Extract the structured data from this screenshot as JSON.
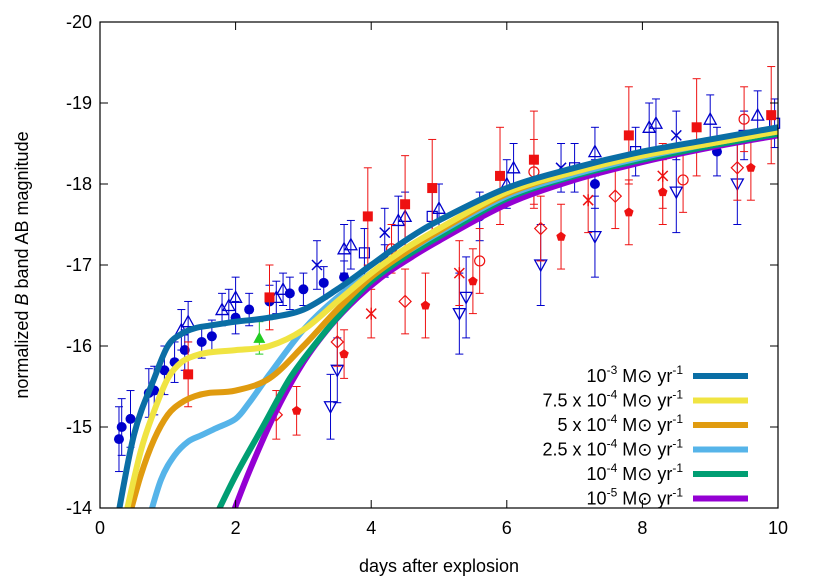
{
  "chart_data": {
    "type": "line",
    "xlabel": "days after explosion",
    "ylabel_parts": [
      "normalized ",
      "B",
      " band AB magnitude"
    ],
    "xlim": [
      0,
      10
    ],
    "ylim": [
      -14,
      -20
    ],
    "y_inverted": true,
    "x_ticks": [
      0,
      2,
      4,
      6,
      8,
      10
    ],
    "x_tick_labels": [
      "0",
      "2",
      "4",
      "6",
      "8",
      "10"
    ],
    "y_ticks": [
      -14,
      -15,
      -16,
      -17,
      -18,
      -19,
      -20
    ],
    "y_tick_labels": [
      "-14",
      "-15",
      "-16",
      "-17",
      "-18",
      "-19",
      "-20"
    ],
    "legend_position": "bottom-right",
    "series": [
      {
        "name": "10-3 M⊙ yr-1",
        "label_parts": [
          "10",
          "-3",
          " M⊙ yr",
          "-1"
        ],
        "color": "#0a6ea5",
        "width": 6,
        "x": [
          0.2,
          0.5,
          0.8,
          1.0,
          1.2,
          1.4,
          1.6,
          2.0,
          2.5,
          3.0,
          3.5,
          4.0,
          4.5,
          5.0,
          6.0,
          7.0,
          8.0,
          9.0,
          10.0
        ],
        "y": [
          -13.6,
          -14.9,
          -15.6,
          -16.0,
          -16.15,
          -16.22,
          -16.25,
          -16.3,
          -16.35,
          -16.45,
          -16.7,
          -17.0,
          -17.3,
          -17.55,
          -17.95,
          -18.2,
          -18.4,
          -18.55,
          -18.7
        ]
      },
      {
        "name": "7.5 x 10-4 M⊙ yr-1",
        "label_parts": [
          "7.5 x 10",
          "-4",
          " M⊙ yr",
          "-1"
        ],
        "color": "#f0e442",
        "width": 6,
        "x": [
          0.35,
          0.6,
          0.8,
          1.0,
          1.2,
          1.4,
          1.6,
          2.0,
          2.5,
          3.0,
          3.5,
          4.0,
          4.5,
          5.0,
          6.0,
          7.0,
          8.0,
          9.0,
          10.0
        ],
        "y": [
          -13.8,
          -14.7,
          -15.2,
          -15.6,
          -15.8,
          -15.88,
          -15.92,
          -15.95,
          -16.0,
          -16.2,
          -16.55,
          -16.9,
          -17.2,
          -17.45,
          -17.9,
          -18.15,
          -18.35,
          -18.5,
          -18.65
        ]
      },
      {
        "name": "5 x 10-4 M⊙ yr-1",
        "label_parts": [
          "5 x 10",
          "-4",
          " M⊙ yr",
          "-1"
        ],
        "color": "#e09b0f",
        "width": 6,
        "x": [
          0.4,
          0.6,
          0.8,
          1.0,
          1.2,
          1.4,
          1.6,
          2.0,
          2.5,
          3.0,
          3.5,
          4.0,
          4.5,
          5.0,
          6.0,
          7.0,
          8.0,
          9.0,
          10.0
        ],
        "y": [
          -13.8,
          -14.4,
          -14.85,
          -15.15,
          -15.3,
          -15.38,
          -15.42,
          -15.45,
          -15.6,
          -16.0,
          -16.45,
          -16.85,
          -17.15,
          -17.42,
          -17.88,
          -18.15,
          -18.35,
          -18.5,
          -18.65
        ]
      },
      {
        "name": "2.5 x 10-4 M⊙ yr-1",
        "label_parts": [
          "2.5 x 10",
          "-4",
          " M⊙ yr",
          "-1"
        ],
        "color": "#56b4e9",
        "width": 6,
        "x": [
          0.7,
          0.9,
          1.1,
          1.3,
          1.5,
          1.7,
          2.0,
          2.2,
          2.5,
          3.0,
          3.5,
          4.0,
          4.5,
          5.0,
          6.0,
          7.0,
          8.0,
          9.0,
          10.0
        ],
        "y": [
          -13.8,
          -14.35,
          -14.65,
          -14.82,
          -14.9,
          -14.98,
          -15.1,
          -15.3,
          -15.65,
          -16.2,
          -16.6,
          -16.9,
          -17.15,
          -17.4,
          -17.85,
          -18.12,
          -18.33,
          -18.5,
          -18.65
        ]
      },
      {
        "name": "10-4 M⊙ yr-1",
        "label_parts": [
          "10",
          "-4",
          " M⊙ yr",
          "-1"
        ],
        "color": "#009e73",
        "width": 6,
        "x": [
          1.65,
          2.0,
          2.4,
          2.8,
          3.2,
          3.6,
          4.0,
          4.5,
          5.0,
          6.0,
          7.0,
          8.0,
          9.0,
          10.0
        ],
        "y": [
          -13.8,
          -14.4,
          -15.0,
          -15.6,
          -16.05,
          -16.45,
          -16.8,
          -17.1,
          -17.35,
          -17.82,
          -18.1,
          -18.3,
          -18.47,
          -18.62
        ]
      },
      {
        "name": "10-5 M⊙ yr-1",
        "label_parts": [
          "10",
          "-5",
          " M⊙ yr",
          "-1"
        ],
        "color": "#9400d3",
        "width": 6,
        "x": [
          1.9,
          2.2,
          2.6,
          3.0,
          3.4,
          3.8,
          4.2,
          4.6,
          5.0,
          6.0,
          7.0,
          8.0,
          9.0,
          10.0
        ],
        "y": [
          -13.8,
          -14.45,
          -15.2,
          -15.8,
          -16.25,
          -16.6,
          -16.88,
          -17.1,
          -17.3,
          -17.75,
          -18.05,
          -18.27,
          -18.45,
          -18.6
        ]
      }
    ],
    "observations": [
      {
        "color": "#0000cc",
        "marker": "circle-filled",
        "points": [
          [
            0.28,
            -14.85,
            0.4
          ],
          [
            0.32,
            -15.0,
            0.35
          ],
          [
            0.45,
            -15.1,
            0.35
          ],
          [
            0.72,
            -15.42,
            0.3
          ],
          [
            0.8,
            -15.45,
            0.3
          ],
          [
            0.95,
            -15.7,
            0.3
          ],
          [
            1.1,
            -15.8,
            0.25
          ],
          [
            1.25,
            -15.95,
            0.25
          ],
          [
            1.5,
            -16.05,
            0.2
          ],
          [
            1.65,
            -16.12,
            0.2
          ],
          [
            2.0,
            -16.35,
            0.2
          ],
          [
            2.2,
            -16.45,
            0.2
          ],
          [
            2.5,
            -16.55,
            0.2
          ],
          [
            2.8,
            -16.65,
            0.2
          ],
          [
            3.0,
            -16.7,
            0.2
          ],
          [
            3.3,
            -16.78,
            0.2
          ],
          [
            3.6,
            -16.85,
            0.2
          ],
          [
            4.2,
            -17.05,
            0.2
          ],
          [
            5.6,
            -17.6,
            0.3
          ],
          [
            7.3,
            -18.0,
            0.3
          ],
          [
            9.1,
            -18.4,
            0.3
          ]
        ]
      },
      {
        "color": "#0000cc",
        "marker": "triangle-up-open",
        "points": [
          [
            1.2,
            -16.2,
            0.25
          ],
          [
            1.3,
            -16.3,
            0.25
          ],
          [
            1.8,
            -16.45,
            0.2
          ],
          [
            1.9,
            -16.5,
            0.2
          ],
          [
            2.0,
            -16.6,
            0.25
          ],
          [
            2.6,
            -16.6,
            0.2
          ],
          [
            2.7,
            -16.7,
            0.2
          ],
          [
            3.6,
            -17.2,
            0.3
          ],
          [
            3.7,
            -17.25,
            0.3
          ],
          [
            4.4,
            -17.55,
            0.3
          ],
          [
            4.5,
            -17.6,
            0.3
          ],
          [
            5.0,
            -17.7,
            0.3
          ],
          [
            6.0,
            -18.0,
            0.3
          ],
          [
            6.1,
            -18.2,
            0.3
          ],
          [
            7.3,
            -18.4,
            0.3
          ],
          [
            8.1,
            -18.7,
            0.3
          ],
          [
            8.2,
            -18.75,
            0.3
          ],
          [
            9.0,
            -18.8,
            0.3
          ],
          [
            9.7,
            -18.85,
            0.3
          ]
        ]
      },
      {
        "color": "#0000cc",
        "marker": "triangle-down-open",
        "points": [
          [
            3.4,
            -15.25,
            0.4
          ],
          [
            3.5,
            -15.7,
            0.4
          ],
          [
            5.3,
            -16.4,
            0.5
          ],
          [
            5.4,
            -16.6,
            0.5
          ],
          [
            6.5,
            -17.0,
            0.5
          ],
          [
            7.3,
            -17.35,
            0.5
          ],
          [
            8.5,
            -17.9,
            0.5
          ],
          [
            9.4,
            -18.0,
            0.5
          ]
        ]
      },
      {
        "color": "#0000cc",
        "marker": "square-open",
        "points": [
          [
            3.9,
            -17.15,
            0.3
          ],
          [
            4.9,
            -17.6,
            0.3
          ],
          [
            7.0,
            -18.2,
            0.3
          ],
          [
            7.9,
            -18.4,
            0.3
          ],
          [
            9.5,
            -18.6,
            0.3
          ],
          [
            9.95,
            -18.75,
            0.3
          ]
        ]
      },
      {
        "color": "#0000cc",
        "marker": "cross",
        "points": [
          [
            3.2,
            -17.0,
            0.3
          ],
          [
            4.2,
            -17.4,
            0.3
          ],
          [
            6.8,
            -18.2,
            0.3
          ],
          [
            8.5,
            -18.6,
            0.3
          ]
        ]
      },
      {
        "color": "#ee1111",
        "marker": "square-filled",
        "points": [
          [
            1.3,
            -15.65,
            0.4
          ],
          [
            2.5,
            -16.6,
            0.4
          ],
          [
            3.95,
            -17.6,
            0.6
          ],
          [
            4.5,
            -17.75,
            0.6
          ],
          [
            4.9,
            -17.95,
            0.6
          ],
          [
            5.9,
            -18.1,
            0.6
          ],
          [
            6.4,
            -18.3,
            0.6
          ],
          [
            7.8,
            -18.6,
            0.6
          ],
          [
            8.8,
            -18.7,
            0.6
          ],
          [
            9.9,
            -18.85,
            0.6
          ]
        ]
      },
      {
        "color": "#ee1111",
        "marker": "pentagon-filled",
        "points": [
          [
            2.9,
            -15.2,
            0.3
          ],
          [
            3.6,
            -15.9,
            0.3
          ],
          [
            4.8,
            -16.5,
            0.4
          ],
          [
            5.5,
            -16.8,
            0.4
          ],
          [
            6.8,
            -17.35,
            0.4
          ],
          [
            7.8,
            -17.65,
            0.4
          ],
          [
            8.3,
            -17.9,
            0.4
          ],
          [
            9.6,
            -18.2,
            0.4
          ]
        ]
      },
      {
        "color": "#ee1111",
        "marker": "diamond-open",
        "points": [
          [
            2.6,
            -15.15,
            0.3
          ],
          [
            3.5,
            -16.05,
            0.3
          ],
          [
            4.5,
            -16.55,
            0.4
          ],
          [
            6.5,
            -17.45,
            0.4
          ],
          [
            7.6,
            -17.85,
            0.4
          ],
          [
            9.4,
            -18.2,
            0.4
          ]
        ]
      },
      {
        "color": "#ee1111",
        "marker": "circle-open",
        "points": [
          [
            4.3,
            -17.2,
            0.3
          ],
          [
            5.6,
            -17.05,
            0.4
          ],
          [
            6.4,
            -18.15,
            0.4
          ],
          [
            8.6,
            -18.05,
            0.4
          ],
          [
            9.5,
            -18.8,
            0.4
          ]
        ]
      },
      {
        "color": "#ee1111",
        "marker": "star",
        "points": [
          [
            4.0,
            -16.4,
            0.3
          ],
          [
            5.3,
            -16.9,
            0.4
          ],
          [
            7.2,
            -17.8,
            0.4
          ],
          [
            8.3,
            -18.1,
            0.4
          ]
        ]
      },
      {
        "color": "#22cc22",
        "marker": "triangle-up-filled",
        "points": [
          [
            2.35,
            -16.1,
            0.2
          ]
        ]
      }
    ]
  }
}
